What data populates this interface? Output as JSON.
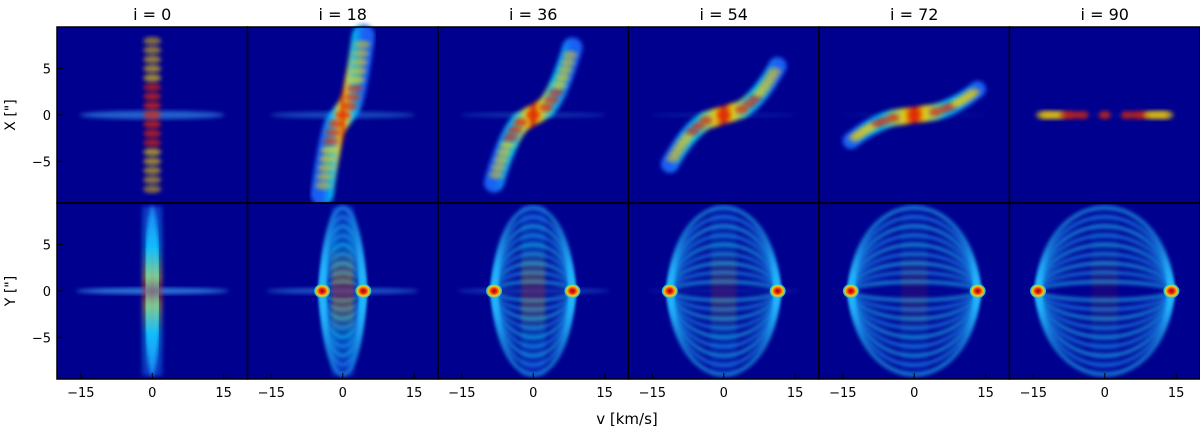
{
  "chart_data": {
    "type": "heatmap",
    "colormap": "jet",
    "panel_titles": [
      "i = 0",
      "i = 18",
      "i = 36",
      "i = 54",
      "i = 72",
      "i = 90"
    ],
    "inclinations": [
      0,
      18,
      36,
      54,
      72,
      90
    ],
    "xlabel": "v [km/s]",
    "row_ylabels": [
      "X [\"]",
      "Y [\"]"
    ],
    "x_ticks": [
      -15,
      0,
      15
    ],
    "x_tick_labels": [
      "−15",
      "0",
      "15"
    ],
    "y_ticks": [
      5,
      0,
      -5
    ],
    "y_tick_labels": [
      "5",
      "0",
      "−5"
    ],
    "xlim": [
      -20,
      20
    ],
    "ylim": [
      -9.5,
      9.5
    ],
    "grid": false,
    "rings": {
      "radii": [
        1,
        2,
        3,
        4,
        5,
        6,
        7,
        8,
        9
      ],
      "v_max": 14
    },
    "background_color": "#00008f"
  }
}
